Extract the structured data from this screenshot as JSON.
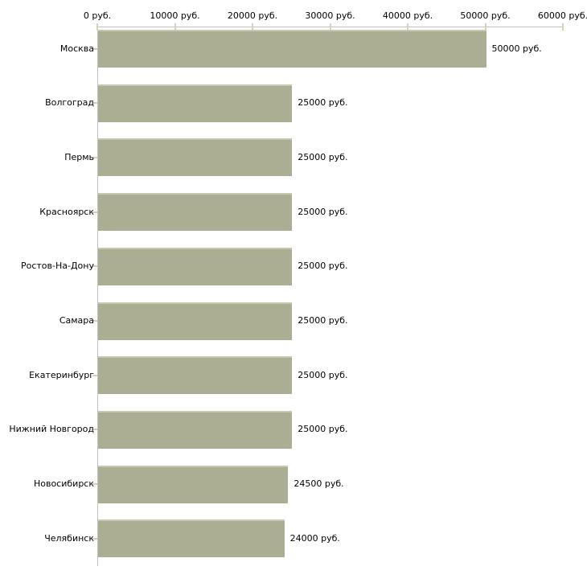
{
  "chart_data": {
    "type": "bar",
    "orientation": "horizontal",
    "title": "",
    "unit": "руб.",
    "categories": [
      "Москва",
      "Волгоград",
      "Пермь",
      "Красноярск",
      "Ростов-На-Дону",
      "Самара",
      "Екатеринбург",
      "Нижний Новгород",
      "Новосибирск",
      "Челябинск"
    ],
    "values": [
      50000,
      25000,
      25000,
      25000,
      25000,
      25000,
      25000,
      25000,
      24500,
      24000
    ],
    "value_labels": [
      "50000 руб.",
      "25000 руб.",
      "25000 руб.",
      "25000 руб.",
      "25000 руб.",
      "25000 руб.",
      "25000 руб.",
      "25000 руб.",
      "24500 руб.",
      "24000 руб."
    ],
    "x_axis": {
      "position": "top",
      "range": [
        0,
        60000
      ],
      "ticks": [
        0,
        10000,
        20000,
        30000,
        40000,
        50000,
        60000
      ],
      "tick_labels": [
        "0 руб.",
        "10000 руб.",
        "20000 руб.",
        "30000 руб.",
        "40000 руб.",
        "50000 руб.",
        "60000 руб."
      ]
    },
    "grid": false,
    "legend": false,
    "colors": {
      "bar": "#abae93",
      "bar_top_edge": "#c6c9b0",
      "axis": "#c0c0c0",
      "x_tick": "#d4d4b0",
      "y_tick": "#d5cdbd",
      "background": "#ffffff",
      "text": "#000000"
    }
  }
}
